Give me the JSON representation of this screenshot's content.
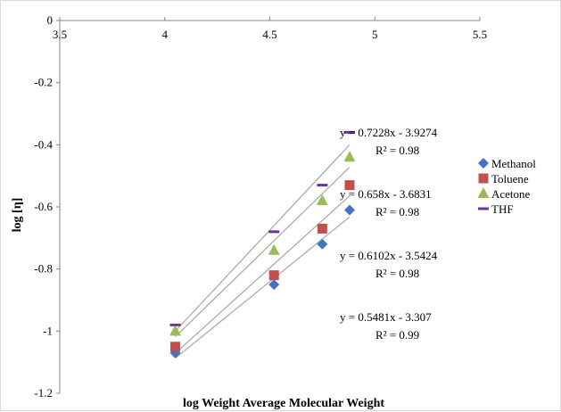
{
  "chart_data": {
    "type": "scatter",
    "xlabel": "log Weight Average Molecular Weight",
    "ylabel": "log [η]",
    "xlim": [
      3.5,
      5.5
    ],
    "ylim": [
      -1.2,
      0
    ],
    "xticks": [
      "3.5",
      "4",
      "4.5",
      "5",
      "5.5"
    ],
    "yticks": [
      "0",
      "-0.2",
      "-0.4",
      "-0.6",
      "-0.8",
      "-1",
      "-1.2"
    ],
    "legend_position": "right",
    "series": [
      {
        "name": "Methanol",
        "color": "#4472c4",
        "marker": "diamond",
        "x": [
          4.05,
          4.52,
          4.75,
          4.88
        ],
        "y": [
          -1.07,
          -0.85,
          -0.72,
          -0.61
        ],
        "trend": {
          "slope": 0.5481,
          "intercept": -3.307,
          "equation": "y = 0.5481x - 3.307",
          "r2": "R² = 0.99"
        }
      },
      {
        "name": "Toluene",
        "color": "#c0504d",
        "marker": "square",
        "x": [
          4.05,
          4.52,
          4.75,
          4.88
        ],
        "y": [
          -1.05,
          -0.82,
          -0.67,
          -0.53
        ],
        "trend": {
          "slope": 0.6102,
          "intercept": -3.5424,
          "equation": "y = 0.6102x - 3.5424",
          "r2": "R² = 0.98"
        }
      },
      {
        "name": "Acetone",
        "color": "#9bbb59",
        "marker": "triangle",
        "x": [
          4.05,
          4.52,
          4.75,
          4.88
        ],
        "y": [
          -1.0,
          -0.74,
          -0.58,
          -0.44
        ],
        "trend": {
          "slope": 0.658,
          "intercept": -3.6831,
          "equation": "y = 0.658x - 3.6831",
          "r2": "R² = 0.98"
        }
      },
      {
        "name": "THF",
        "color": "#7030a0",
        "marker": "dash",
        "x": [
          4.05,
          4.52,
          4.75,
          4.88
        ],
        "y": [
          -0.98,
          -0.68,
          -0.53,
          -0.36
        ],
        "trend": {
          "slope": 0.7228,
          "intercept": -3.9274,
          "equation": "y = 0.7228x - 3.9274",
          "r2": "R² = 0.98"
        }
      }
    ]
  }
}
